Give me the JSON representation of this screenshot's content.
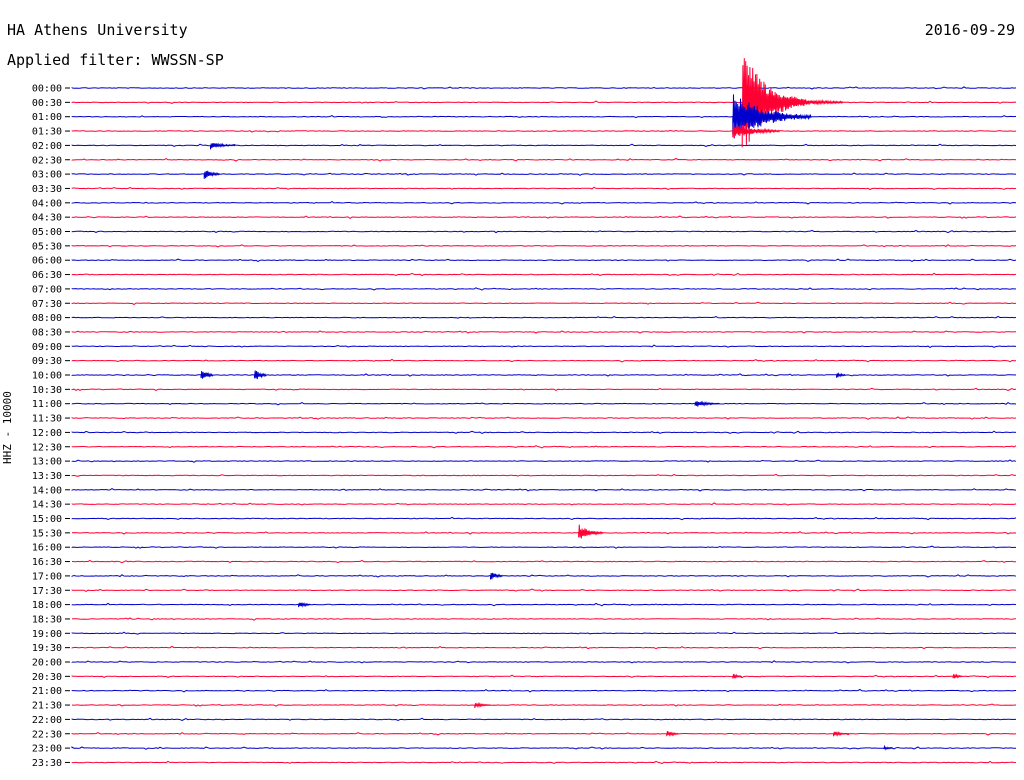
{
  "header": {
    "station": "HA Athens University",
    "date": "2016-09-29",
    "filter_label": "Applied filter: WWSSN-SP"
  },
  "channel_label": "HHZ - 10000",
  "colors": {
    "even": "#0000cc",
    "odd": "#ff0033"
  },
  "chart_data": {
    "type": "line",
    "title": "",
    "xlabel": "",
    "ylabel": "HHZ - 10000",
    "rows": [
      "00:00",
      "00:30",
      "01:00",
      "01:30",
      "02:00",
      "02:30",
      "03:00",
      "03:30",
      "04:00",
      "04:30",
      "05:00",
      "05:30",
      "06:00",
      "06:30",
      "07:00",
      "07:30",
      "08:00",
      "08:30",
      "09:00",
      "09:30",
      "10:00",
      "10:30",
      "11:00",
      "11:30",
      "12:00",
      "12:30",
      "13:00",
      "13:30",
      "14:00",
      "14:30",
      "15:00",
      "15:30",
      "16:00",
      "16:30",
      "17:00",
      "17:30",
      "18:00",
      "18:30",
      "19:00",
      "19:30",
      "20:00",
      "20:30",
      "21:00",
      "21:30",
      "22:00",
      "22:30",
      "23:00",
      "23:30"
    ],
    "minutes_per_row": 30,
    "events": [
      {
        "row": 1,
        "minute": 21.3,
        "amplitude": 55,
        "duration": 2.0
      },
      {
        "row": 1,
        "minute": 22.0,
        "amplitude": 12,
        "duration": 2.5
      },
      {
        "row": 2,
        "minute": 21.0,
        "amplitude": 26,
        "duration": 2.5
      },
      {
        "row": 3,
        "minute": 21.0,
        "amplitude": 9,
        "duration": 1.5
      },
      {
        "row": 4,
        "minute": 4.4,
        "amplitude": 4,
        "duration": 0.8
      },
      {
        "row": 6,
        "minute": 4.2,
        "amplitude": 6,
        "duration": 0.5
      },
      {
        "row": 20,
        "minute": 4.1,
        "amplitude": 7,
        "duration": 0.4
      },
      {
        "row": 20,
        "minute": 5.8,
        "amplitude": 7,
        "duration": 0.4
      },
      {
        "row": 20,
        "minute": 24.3,
        "amplitude": 3,
        "duration": 0.3
      },
      {
        "row": 22,
        "minute": 19.8,
        "amplitude": 4,
        "duration": 0.8
      },
      {
        "row": 31,
        "minute": 16.1,
        "amplitude": 9,
        "duration": 0.8
      },
      {
        "row": 34,
        "minute": 13.3,
        "amplitude": 5,
        "duration": 0.4
      },
      {
        "row": 36,
        "minute": 7.2,
        "amplitude": 4,
        "duration": 0.4
      },
      {
        "row": 41,
        "minute": 21.0,
        "amplitude": 3,
        "duration": 0.3
      },
      {
        "row": 41,
        "minute": 28.0,
        "amplitude": 3,
        "duration": 0.3
      },
      {
        "row": 43,
        "minute": 12.8,
        "amplitude": 3,
        "duration": 0.5
      },
      {
        "row": 45,
        "minute": 18.9,
        "amplitude": 4,
        "duration": 0.4
      },
      {
        "row": 45,
        "minute": 24.2,
        "amplitude": 3,
        "duration": 0.5
      },
      {
        "row": 46,
        "minute": 25.8,
        "amplitude": 2,
        "duration": 0.3
      }
    ]
  }
}
